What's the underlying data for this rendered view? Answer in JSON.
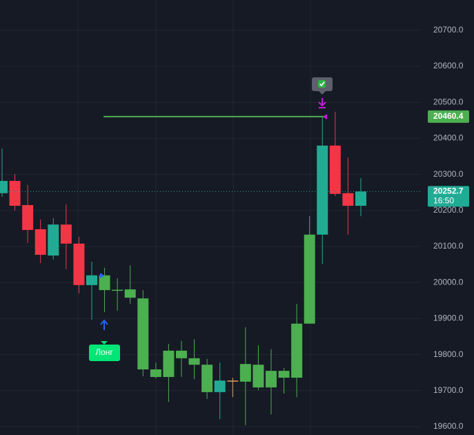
{
  "chart_data": {
    "type": "candlestick",
    "candles": [
      {
        "o": 20248,
        "h": 20372,
        "l": 20238,
        "c": 20282,
        "color": "#22ab94"
      },
      {
        "o": 20282,
        "h": 20301,
        "l": 20200,
        "c": 20213,
        "color": "#f23645"
      },
      {
        "o": 20215,
        "h": 20271,
        "l": 20110,
        "c": 20146,
        "color": "#f23645"
      },
      {
        "o": 20148,
        "h": 20175,
        "l": 20054,
        "c": 20077,
        "color": "#f23645"
      },
      {
        "o": 20075,
        "h": 20179,
        "l": 20064,
        "c": 20161,
        "color": "#22ab94"
      },
      {
        "o": 20161,
        "h": 20217,
        "l": 20037,
        "c": 20108,
        "color": "#f23645"
      },
      {
        "o": 20108,
        "h": 20127,
        "l": 19970,
        "c": 19993,
        "color": "#f23645"
      },
      {
        "o": 19993,
        "h": 20058,
        "l": 19897,
        "c": 20020,
        "color": "#22ab94"
      },
      {
        "o": 19979,
        "h": 20041,
        "l": 19918,
        "c": 20020,
        "color": "#4caf50"
      },
      {
        "o": 19980,
        "h": 20012,
        "l": 19922,
        "c": 19979,
        "color": "#4caf50"
      },
      {
        "o": 19981,
        "h": 20048,
        "l": 19941,
        "c": 19958,
        "color": "#4caf50"
      },
      {
        "o": 19956,
        "h": 19979,
        "l": 19740,
        "c": 19759,
        "color": "#4caf50"
      },
      {
        "o": 19759,
        "h": 19778,
        "l": 19734,
        "c": 19738,
        "color": "#4caf50"
      },
      {
        "o": 19738,
        "h": 19830,
        "l": 19669,
        "c": 19811,
        "color": "#4caf50"
      },
      {
        "o": 19811,
        "h": 19838,
        "l": 19738,
        "c": 19790,
        "color": "#4caf50"
      },
      {
        "o": 19790,
        "h": 19843,
        "l": 19732,
        "c": 19772,
        "color": "#4caf50"
      },
      {
        "o": 19772,
        "h": 19788,
        "l": 19677,
        "c": 19696,
        "color": "#4caf50"
      },
      {
        "o": 19696,
        "h": 19778,
        "l": 19621,
        "c": 19728,
        "color": "#22ab94"
      },
      {
        "o": 19728,
        "h": 19736,
        "l": 19682,
        "c": 19727,
        "color": "#e0a060"
      },
      {
        "o": 19725,
        "h": 19876,
        "l": 19604,
        "c": 19774,
        "color": "#4caf50"
      },
      {
        "o": 19772,
        "h": 19826,
        "l": 19702,
        "c": 19709,
        "color": "#4caf50"
      },
      {
        "o": 19709,
        "h": 19815,
        "l": 19634,
        "c": 19755,
        "color": "#4caf50"
      },
      {
        "o": 19736,
        "h": 19763,
        "l": 19692,
        "c": 19755,
        "color": "#4caf50"
      },
      {
        "o": 19736,
        "h": 19941,
        "l": 19682,
        "c": 19886,
        "color": "#4caf50"
      },
      {
        "o": 19886,
        "h": 20184,
        "l": 19886,
        "c": 20133,
        "color": "#4caf50"
      },
      {
        "o": 20133,
        "h": 20460.4,
        "l": 20052,
        "c": 20380,
        "color": "#22ab94"
      },
      {
        "o": 20380,
        "h": 20474,
        "l": 20240,
        "c": 20246,
        "color": "#f23645"
      },
      {
        "o": 20248,
        "h": 20347,
        "l": 20133,
        "c": 20213,
        "color": "#f23645"
      },
      {
        "o": 20213,
        "h": 20290,
        "l": 20184,
        "c": 20252.7,
        "color": "#22ab94"
      }
    ],
    "ylim": [
      19577,
      20784
    ],
    "yticks": [
      {
        "value": 19600,
        "label": "19600.0"
      },
      {
        "value": 19700,
        "label": "19700.0"
      },
      {
        "value": 19800,
        "label": "19800.0"
      },
      {
        "value": 19900,
        "label": "19900.0"
      },
      {
        "value": 20000,
        "label": "20000.0"
      },
      {
        "value": 20100,
        "label": "20100.0"
      },
      {
        "value": 20200,
        "label": "20200.0"
      },
      {
        "value": 20300,
        "label": "20300.0"
      },
      {
        "value": 20400,
        "label": "20400.0"
      },
      {
        "value": 20500,
        "label": "20500.0"
      },
      {
        "value": 20600,
        "label": "20600.0"
      },
      {
        "value": 20700,
        "label": "20700.0"
      }
    ],
    "grid": true,
    "target_line": {
      "value": 20460.4,
      "color": "#4caf50"
    },
    "last_price": {
      "value": 20252.7,
      "time": "16:50",
      "color": "#22ab94"
    },
    "annotation": "Лонг"
  }
}
